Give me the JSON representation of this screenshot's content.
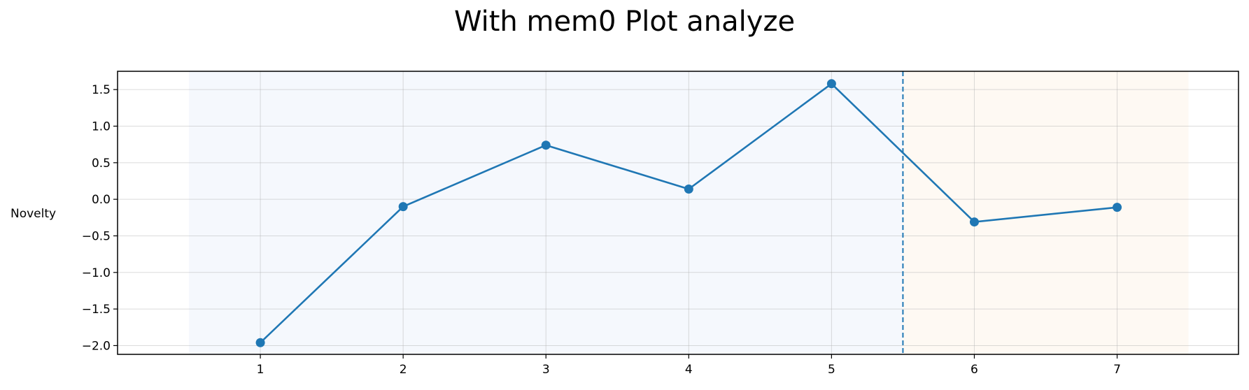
{
  "chart_data": {
    "type": "line",
    "title": "With mem0 Plot analyze",
    "xlabel": "",
    "ylabel": "Novelty",
    "x": [
      1,
      2,
      3,
      4,
      5,
      6,
      7
    ],
    "series": [
      {
        "values": [
          -1.96,
          -0.1,
          0.74,
          0.14,
          1.58,
          -0.31,
          -0.11
        ],
        "color": "#1f77b4",
        "marker": "circle"
      }
    ],
    "xticks": [
      "1",
      "2",
      "3",
      "4",
      "5",
      "6",
      "7"
    ],
    "yticks": [
      "−2.0",
      "−1.5",
      "−1.0",
      "−0.5",
      "0.0",
      "0.5",
      "1.0",
      "1.5"
    ],
    "ytick_values": [
      -2.0,
      -1.5,
      -1.0,
      -0.5,
      0.0,
      0.5,
      1.0,
      1.5
    ],
    "xlim": [
      0.0,
      7.85
    ],
    "ylim": [
      -2.12,
      1.75
    ],
    "grid": true,
    "regions": [
      {
        "x_start": 0.5,
        "x_end": 5.5,
        "color": "#e8f0fb"
      },
      {
        "x_start": 5.5,
        "x_end": 7.5,
        "color": "#fdf1e4"
      }
    ],
    "vline": {
      "x": 5.5,
      "style": "dashed",
      "color": "#1f77b4"
    }
  }
}
